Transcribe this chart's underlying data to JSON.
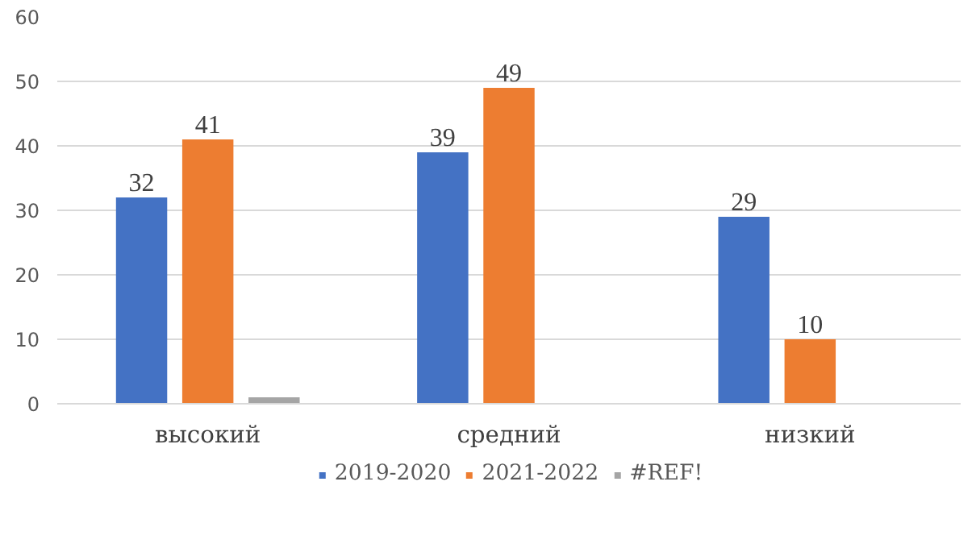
{
  "chart_data": {
    "type": "bar",
    "categories": [
      "высокий",
      "средний",
      "низкий"
    ],
    "series": [
      {
        "name": "2019-2020",
        "color": "#4472c4",
        "values": [
          32,
          39,
          29
        ],
        "value_labels": [
          "32",
          "39",
          "29"
        ]
      },
      {
        "name": "2021-2022",
        "color": "#ed7d31",
        "values": [
          41,
          49,
          10
        ],
        "value_labels": [
          "41",
          "49",
          "10"
        ]
      },
      {
        "name": "#REF!",
        "color": "#a5a5a5",
        "values": [
          1,
          null,
          null
        ],
        "value_labels": [
          null,
          null,
          null
        ]
      }
    ],
    "ylim": [
      0,
      60
    ],
    "yticks": [
      0,
      10,
      20,
      30,
      40,
      50,
      60
    ],
    "grid": "y",
    "legend": "bottom"
  }
}
